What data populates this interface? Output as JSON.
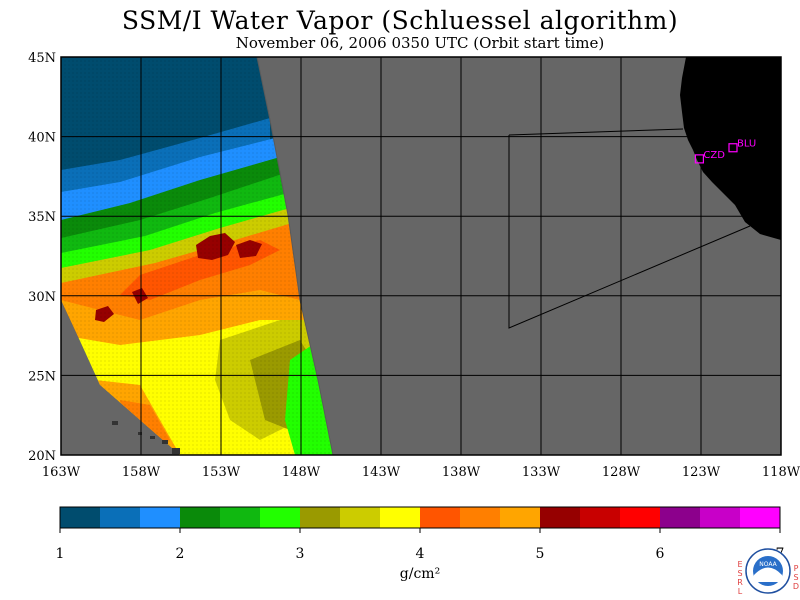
{
  "title": "SSM/I Water Vapor (Schluessel algorithm)",
  "subtitle": "November 06, 2006  0350 UTC  (Orbit start time)",
  "map": {
    "lat_range": [
      20,
      45
    ],
    "lon_range": [
      -163,
      -118
    ],
    "lat_ticks": [
      "20N",
      "25N",
      "30N",
      "35N",
      "40N",
      "45N"
    ],
    "lon_ticks": [
      "163W",
      "158W",
      "153W",
      "148W",
      "143W",
      "138W",
      "133W",
      "128W",
      "123W",
      "118W"
    ],
    "colors": {
      "ocean_nodata": "#666666",
      "land": "#000000",
      "grid": "#000000",
      "station": "#ff00ff"
    },
    "stations": [
      {
        "label": "CZD",
        "lon": -123.1,
        "lat": 38.6
      },
      {
        "label": "BLU",
        "lon": -121.0,
        "lat": 39.3
      }
    ]
  },
  "colorbar": {
    "unit": "g/cm²",
    "tick_labels": [
      "1",
      "2",
      "3",
      "4",
      "5",
      "6",
      "7"
    ],
    "colors": [
      "#004c6e",
      "#0a6fb8",
      "#1f8fff",
      "#0a8a0a",
      "#10b810",
      "#22ff00",
      "#9a9a00",
      "#cccc00",
      "#ffff00",
      "#ff5500",
      "#ff7f00",
      "#ffa500",
      "#960000",
      "#c80000",
      "#ff0000",
      "#8c008c",
      "#c800c8",
      "#ff00ff"
    ]
  },
  "logo": {
    "left_letters": [
      "E",
      "S",
      "R",
      "L"
    ],
    "right_letters": [
      "P",
      "S",
      "D"
    ],
    "seal_text": "NOAA"
  }
}
